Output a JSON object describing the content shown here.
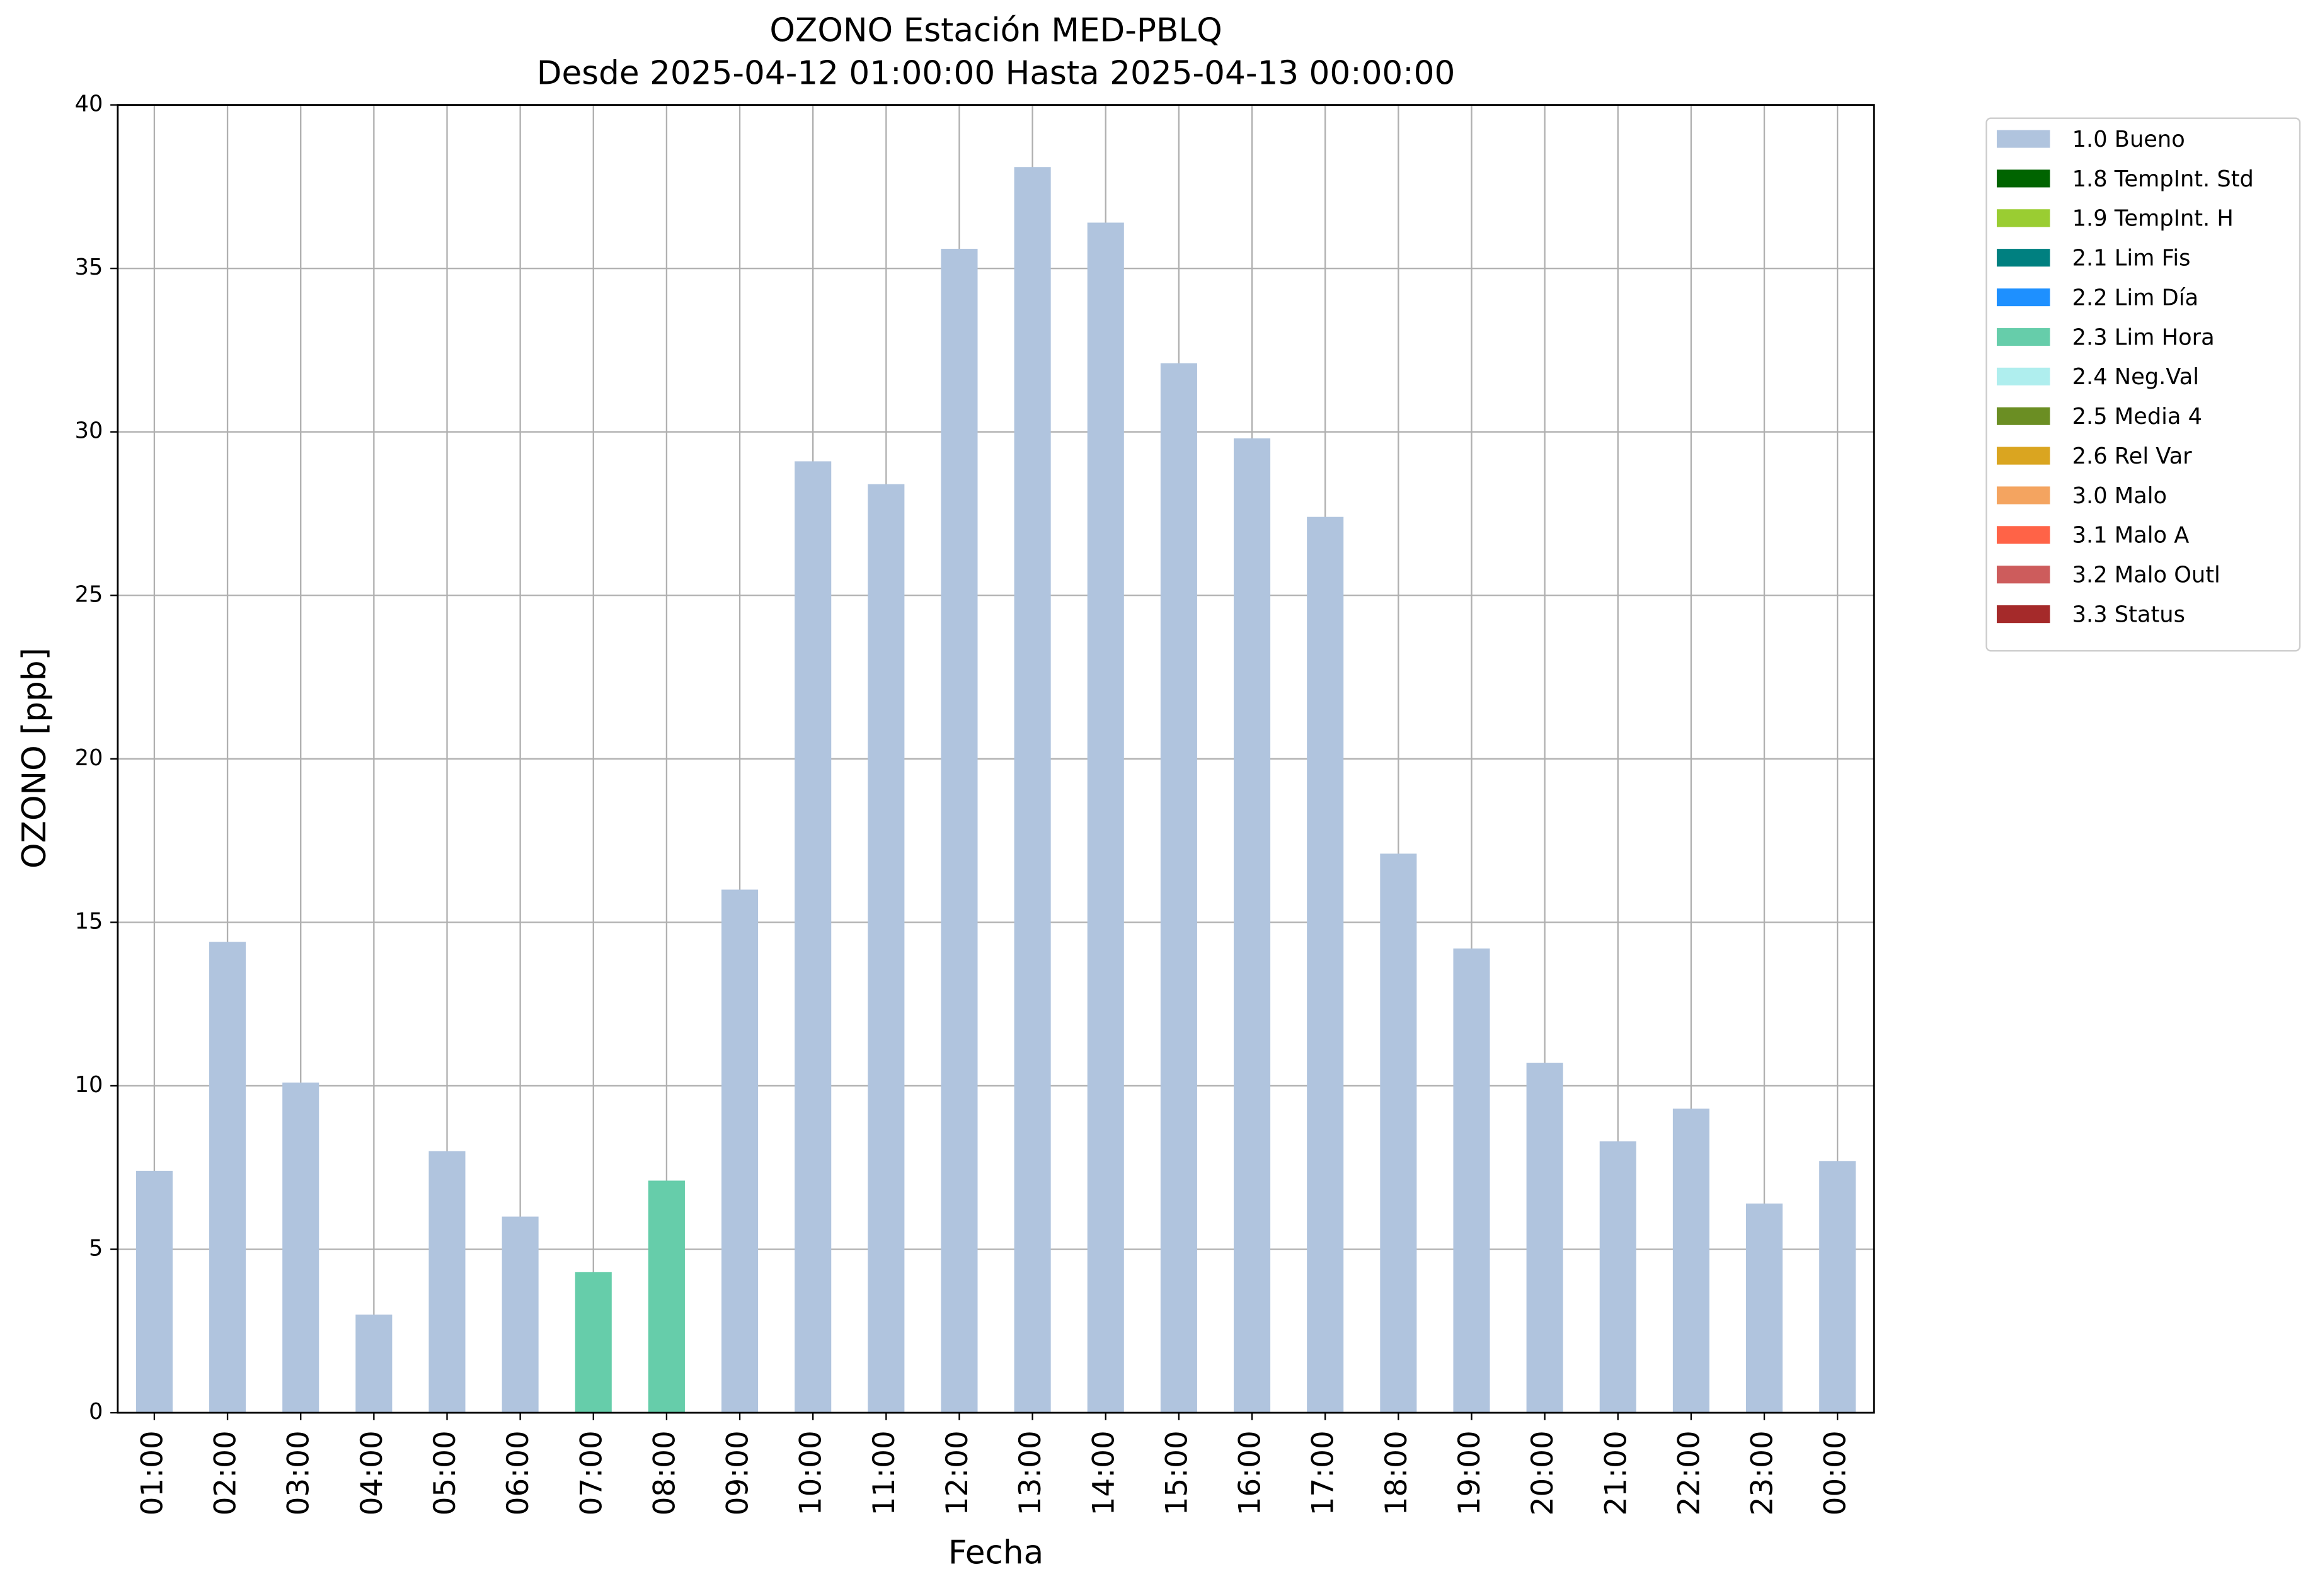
{
  "chart_data": {
    "type": "stacked_bar",
    "title": "OZONO Estación MED-PBLQ",
    "subtitle": "Desde 2025-04-12 01:00:00 Hasta 2025-04-13 00:00:00",
    "x_label": "Fecha",
    "y_label": "OZONO [ppb]",
    "categories": [
      "01:00",
      "02:00",
      "03:00",
      "04:00",
      "05:00",
      "06:00",
      "07:00",
      "08:00",
      "09:00",
      "10:00",
      "11:00",
      "12:00",
      "13:00",
      "14:00",
      "15:00",
      "16:00",
      "17:00",
      "18:00",
      "19:00",
      "20:00",
      "21:00",
      "22:00",
      "23:00",
      "00:00"
    ],
    "series": [
      {
        "name": "1.0 Bueno",
        "color": "#b0c4de",
        "values": [
          7.4,
          14.4,
          10.1,
          3.0,
          8.0,
          6.0,
          null,
          null,
          16.0,
          29.1,
          28.4,
          35.6,
          38.1,
          36.4,
          32.1,
          29.8,
          27.4,
          17.1,
          14.2,
          10.7,
          8.3,
          9.3,
          6.4,
          7.7
        ]
      },
      {
        "name": "1.8 TempInt. Std",
        "color": "#006400",
        "values": [
          null,
          null,
          null,
          null,
          null,
          null,
          null,
          null,
          null,
          null,
          null,
          null,
          null,
          null,
          null,
          null,
          null,
          null,
          null,
          null,
          null,
          null,
          null,
          null
        ]
      },
      {
        "name": "1.9 TempInt. H",
        "color": "#9acd32",
        "values": [
          null,
          null,
          null,
          null,
          null,
          null,
          null,
          null,
          null,
          null,
          null,
          null,
          null,
          null,
          null,
          null,
          null,
          null,
          null,
          null,
          null,
          null,
          null,
          null
        ]
      },
      {
        "name": "2.1 Lim Fis",
        "color": "#008080",
        "values": [
          null,
          null,
          null,
          null,
          null,
          null,
          null,
          null,
          null,
          null,
          null,
          null,
          null,
          null,
          null,
          null,
          null,
          null,
          null,
          null,
          null,
          null,
          null,
          null
        ]
      },
      {
        "name": "2.2 Lim Día",
        "color": "#1e90ff",
        "values": [
          null,
          null,
          null,
          null,
          null,
          null,
          null,
          null,
          null,
          null,
          null,
          null,
          null,
          null,
          null,
          null,
          null,
          null,
          null,
          null,
          null,
          null,
          null,
          null
        ]
      },
      {
        "name": "2.3 Lim Hora",
        "color": "#66cdaa",
        "values": [
          null,
          null,
          null,
          null,
          null,
          null,
          4.3,
          7.1,
          null,
          null,
          null,
          null,
          null,
          null,
          null,
          null,
          null,
          null,
          null,
          null,
          null,
          null,
          null,
          null
        ]
      },
      {
        "name": "2.4 Neg.Val",
        "color": "#afeeee",
        "values": [
          null,
          null,
          null,
          null,
          null,
          null,
          null,
          null,
          null,
          null,
          null,
          null,
          null,
          null,
          null,
          null,
          null,
          null,
          null,
          null,
          null,
          null,
          null,
          null
        ]
      },
      {
        "name": "2.5 Media 4",
        "color": "#6b8e23",
        "values": [
          null,
          null,
          null,
          null,
          null,
          null,
          null,
          null,
          null,
          null,
          null,
          null,
          null,
          null,
          null,
          null,
          null,
          null,
          null,
          null,
          null,
          null,
          null,
          null
        ]
      },
      {
        "name": "2.6 Rel Var",
        "color": "#daa520",
        "values": [
          null,
          null,
          null,
          null,
          null,
          null,
          null,
          null,
          null,
          null,
          null,
          null,
          null,
          null,
          null,
          null,
          null,
          null,
          null,
          null,
          null,
          null,
          null,
          null
        ]
      },
      {
        "name": "3.0 Malo",
        "color": "#f4a460",
        "values": [
          null,
          null,
          null,
          null,
          null,
          null,
          null,
          null,
          null,
          null,
          null,
          null,
          null,
          null,
          null,
          null,
          null,
          null,
          null,
          null,
          null,
          null,
          null,
          null
        ]
      },
      {
        "name": "3.1 Malo A",
        "color": "#ff6347",
        "values": [
          null,
          null,
          null,
          null,
          null,
          null,
          null,
          null,
          null,
          null,
          null,
          null,
          null,
          null,
          null,
          null,
          null,
          null,
          null,
          null,
          null,
          null,
          null,
          null
        ]
      },
      {
        "name": "3.2 Malo Outl",
        "color": "#cd5c5c",
        "values": [
          null,
          null,
          null,
          null,
          null,
          null,
          null,
          null,
          null,
          null,
          null,
          null,
          null,
          null,
          null,
          null,
          null,
          null,
          null,
          null,
          null,
          null,
          null,
          null
        ]
      },
      {
        "name": "3.3 Status",
        "color": "#a52a2a",
        "values": [
          null,
          null,
          null,
          null,
          null,
          null,
          null,
          null,
          null,
          null,
          null,
          null,
          null,
          null,
          null,
          null,
          null,
          null,
          null,
          null,
          null,
          null,
          null,
          null
        ]
      }
    ],
    "ylim": [
      0,
      40
    ],
    "yticks": [
      0,
      5,
      10,
      15,
      20,
      25,
      30,
      35,
      40
    ],
    "grid": true,
    "legend": "outside-right"
  }
}
